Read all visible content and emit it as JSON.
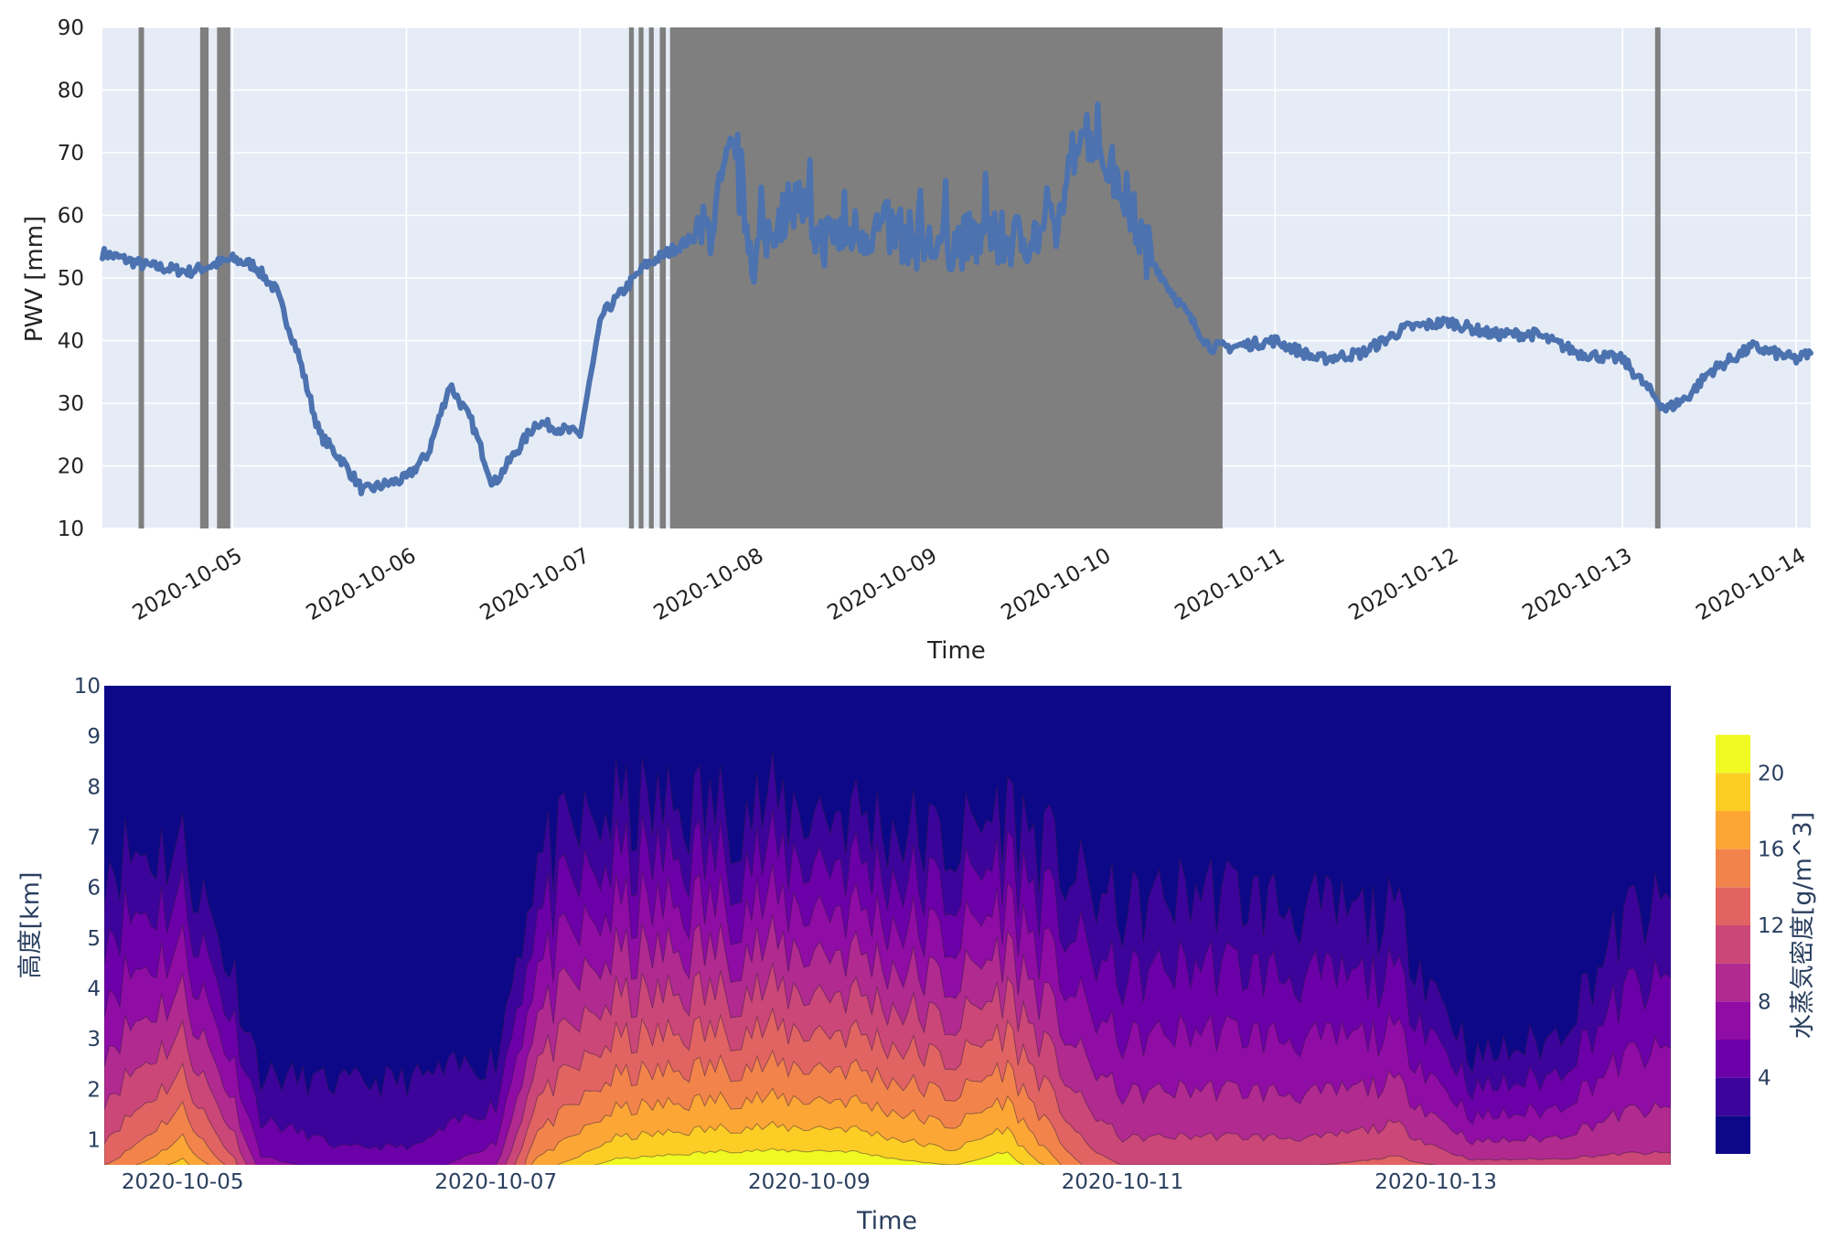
{
  "chart_data": [
    {
      "type": "line",
      "xlabel": "Time",
      "ylabel": "PWV [mm]",
      "x_ticks": [
        "2020-10-05",
        "2020-10-06",
        "2020-10-07",
        "2020-10-08",
        "2020-10-09",
        "2020-10-10",
        "2020-10-11",
        "2020-10-12",
        "2020-10-13",
        "2020-10-14"
      ],
      "xlim": [
        "2020-10-04 06:00",
        "2020-10-14 02:00"
      ],
      "y_ticks": [
        10,
        20,
        30,
        40,
        50,
        60,
        70,
        80,
        90
      ],
      "ylim": [
        10,
        90
      ],
      "grid": true,
      "series_color": "#4c72b0",
      "shade_color": "#7f7f7f",
      "series": [
        {
          "x": [
            "2020-10-04 06:00",
            "2020-10-04 12:00",
            "2020-10-04 18:00",
            "2020-10-05 00:00",
            "2020-10-05 03:00",
            "2020-10-05 06:00",
            "2020-10-05 09:00",
            "2020-10-05 12:00",
            "2020-10-05 15:00",
            "2020-10-05 18:00",
            "2020-10-06 00:00",
            "2020-10-06 03:00",
            "2020-10-06 06:00",
            "2020-10-06 09:00",
            "2020-10-06 12:00",
            "2020-10-06 18:00",
            "2020-10-07 00:00",
            "2020-10-07 03:00",
            "2020-10-07 06:00",
            "2020-10-07 09:00",
            "2020-10-07 12:00",
            "2020-10-07 18:00",
            "2020-10-07 21:00",
            "2020-10-08 00:00",
            "2020-10-08 03:00",
            "2020-10-08 06:00",
            "2020-10-08 09:00",
            "2020-10-08 12:00",
            "2020-10-08 18:00",
            "2020-10-09 00:00",
            "2020-10-09 06:00",
            "2020-10-09 12:00",
            "2020-10-09 18:00",
            "2020-10-09 21:00",
            "2020-10-10 00:00",
            "2020-10-10 03:00",
            "2020-10-10 06:00",
            "2020-10-10 09:00",
            "2020-10-10 12:00",
            "2020-10-10 15:00",
            "2020-10-10 18:00",
            "2020-10-11 00:00",
            "2020-10-11 06:00",
            "2020-10-11 12:00",
            "2020-10-11 18:00",
            "2020-10-12 00:00",
            "2020-10-12 06:00",
            "2020-10-12 12:00",
            "2020-10-12 18:00",
            "2020-10-13 00:00",
            "2020-10-13 06:00",
            "2020-10-13 09:00",
            "2020-10-13 12:00",
            "2020-10-13 18:00",
            "2020-10-14 00:00",
            "2020-10-14 02:00"
          ],
          "y": [
            54,
            52,
            51,
            53,
            52,
            48,
            38,
            25,
            21,
            16,
            18,
            22,
            33,
            27,
            17,
            27,
            25,
            44,
            48,
            52,
            54,
            58,
            70,
            53,
            59,
            63,
            56,
            57,
            58,
            55,
            56,
            56,
            58,
            75,
            70,
            64,
            55,
            49,
            44,
            39,
            39,
            40,
            37,
            38,
            42,
            43,
            41,
            41,
            38,
            37,
            29,
            31,
            35,
            39,
            37,
            38
          ]
        }
      ],
      "shaded_periods": [
        [
          "2020-10-04 11:00",
          "2020-10-04 11:45"
        ],
        [
          "2020-10-04 19:30",
          "2020-10-04 20:40"
        ],
        [
          "2020-10-04 21:50",
          "2020-10-04 23:40"
        ],
        [
          "2020-10-07 06:45",
          "2020-10-07 07:25"
        ],
        [
          "2020-10-07 08:05",
          "2020-10-07 08:45"
        ],
        [
          "2020-10-07 09:30",
          "2020-10-07 10:10"
        ],
        [
          "2020-10-07 11:00",
          "2020-10-07 11:50"
        ],
        [
          "2020-10-07 12:25",
          "2020-10-10 16:45"
        ],
        [
          "2020-10-13 04:30",
          "2020-10-13 05:15"
        ]
      ]
    },
    {
      "type": "heatmap",
      "subtype": "contour",
      "xlabel": "Time",
      "ylabel": "高度[km]",
      "x_ticks": [
        "2020-10-05",
        "2020-10-07",
        "2020-10-09",
        "2020-10-11",
        "2020-10-13"
      ],
      "xlim": [
        "2020-10-04 12:00",
        "2020-10-14 12:00"
      ],
      "y_ticks": [
        1,
        2,
        3,
        4,
        5,
        6,
        7,
        8,
        9,
        10
      ],
      "ylim": [
        0.5,
        10
      ],
      "colorbar": {
        "title": "水蒸気密度[g/m^3]",
        "ticks": [
          4,
          8,
          12,
          16,
          20
        ],
        "range": [
          0,
          24
        ],
        "colorscale": [
          "#0d0887",
          "#3c049b",
          "#6b00a8",
          "#8f0da4",
          "#b02a90",
          "#cb4778",
          "#e16462",
          "#f2844b",
          "#fca636",
          "#fcce25",
          "#f0f921"
        ]
      },
      "level_step": 2,
      "columns": [
        {
          "t": "2020-10-04 12:00",
          "h2": 6.6,
          "sfc": 14
        },
        {
          "t": "2020-10-05 00:00",
          "h2": 6.8,
          "sfc": 19
        },
        {
          "t": "2020-10-05 08:00",
          "h2": 4.2,
          "sfc": 13
        },
        {
          "t": "2020-10-05 12:00",
          "h2": 2.3,
          "sfc": 7
        },
        {
          "t": "2020-10-06 00:00",
          "h2": 2.1,
          "sfc": 5
        },
        {
          "t": "2020-10-06 12:00",
          "h2": 2.2,
          "sfc": 5
        },
        {
          "t": "2020-10-07 00:00",
          "h2": 2.6,
          "sfc": 8
        },
        {
          "t": "2020-10-07 06:00",
          "h2": 6.5,
          "sfc": 17
        },
        {
          "t": "2020-10-07 18:00",
          "h2": 7.5,
          "sfc": 21
        },
        {
          "t": "2020-10-08 12:00",
          "h2": 7.6,
          "sfc": 22
        },
        {
          "t": "2020-10-09 06:00",
          "h2": 7.5,
          "sfc": 22
        },
        {
          "t": "2020-10-09 22:00",
          "h2": 6.8,
          "sfc": 20
        },
        {
          "t": "2020-10-10 06:00",
          "h2": 7.6,
          "sfc": 22
        },
        {
          "t": "2020-10-10 18:00",
          "h2": 6.0,
          "sfc": 14
        },
        {
          "t": "2020-10-11 00:00",
          "h2": 5.5,
          "sfc": 12
        },
        {
          "t": "2020-10-11 12:00",
          "h2": 6.0,
          "sfc": 12
        },
        {
          "t": "2020-10-12 06:00",
          "h2": 5.5,
          "sfc": 12
        },
        {
          "t": "2020-10-12 18:00",
          "h2": 5.4,
          "sfc": 13
        },
        {
          "t": "2020-10-13 06:00",
          "h2": 2.6,
          "sfc": 11
        },
        {
          "t": "2020-10-13 18:00",
          "h2": 3.0,
          "sfc": 11
        },
        {
          "t": "2020-10-14 06:00",
          "h2": 5.5,
          "sfc": 11
        },
        {
          "t": "2020-10-14 12:00",
          "h2": 5.5,
          "sfc": 11
        }
      ]
    }
  ]
}
